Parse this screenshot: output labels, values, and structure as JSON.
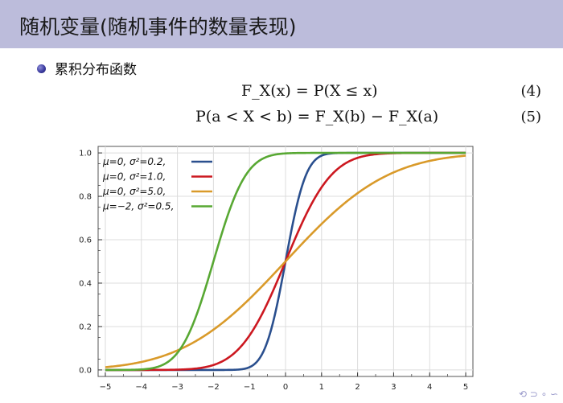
{
  "slide": {
    "title": "随机变量(随机事件的数量表现)",
    "bullet": "累积分布函数",
    "eq1": "F_X(x) = P(X ≤ x)",
    "eq1_num": "(4)",
    "eq2": "P(a < X < b) = F_X(b) − F_X(a)",
    "eq2_num": "(5)",
    "nav": "⟲ ⊃ ∘ ∽"
  },
  "chart_data": {
    "type": "line",
    "title": "",
    "xlabel": "",
    "ylabel": "",
    "xlim": [
      -5.2,
      5.2
    ],
    "ylim": [
      -0.03,
      1.03
    ],
    "xticks": [
      -5,
      -4,
      -3,
      -2,
      -1,
      0,
      1,
      2,
      3,
      4,
      5
    ],
    "yticks": [
      0.0,
      0.2,
      0.4,
      0.6,
      0.8,
      1.0
    ],
    "ytick_labels": [
      "0.0",
      "0.2",
      "0.4",
      "0.6",
      "0.8",
      "1.0"
    ],
    "grid": true,
    "legend_position": "top-left",
    "series": [
      {
        "name": "μ=0,   σ²=0.2,",
        "mu": 0,
        "variance": 0.2,
        "color": "#2a4f8e"
      },
      {
        "name": "μ=0,   σ²=1.0,",
        "mu": 0,
        "variance": 1.0,
        "color": "#cc1820"
      },
      {
        "name": "μ=0,   σ²=5.0,",
        "mu": 0,
        "variance": 5.0,
        "color": "#d99a2a"
      },
      {
        "name": "μ=−2,  σ²=0.5,",
        "mu": -2,
        "variance": 0.5,
        "color": "#58a833"
      }
    ]
  }
}
